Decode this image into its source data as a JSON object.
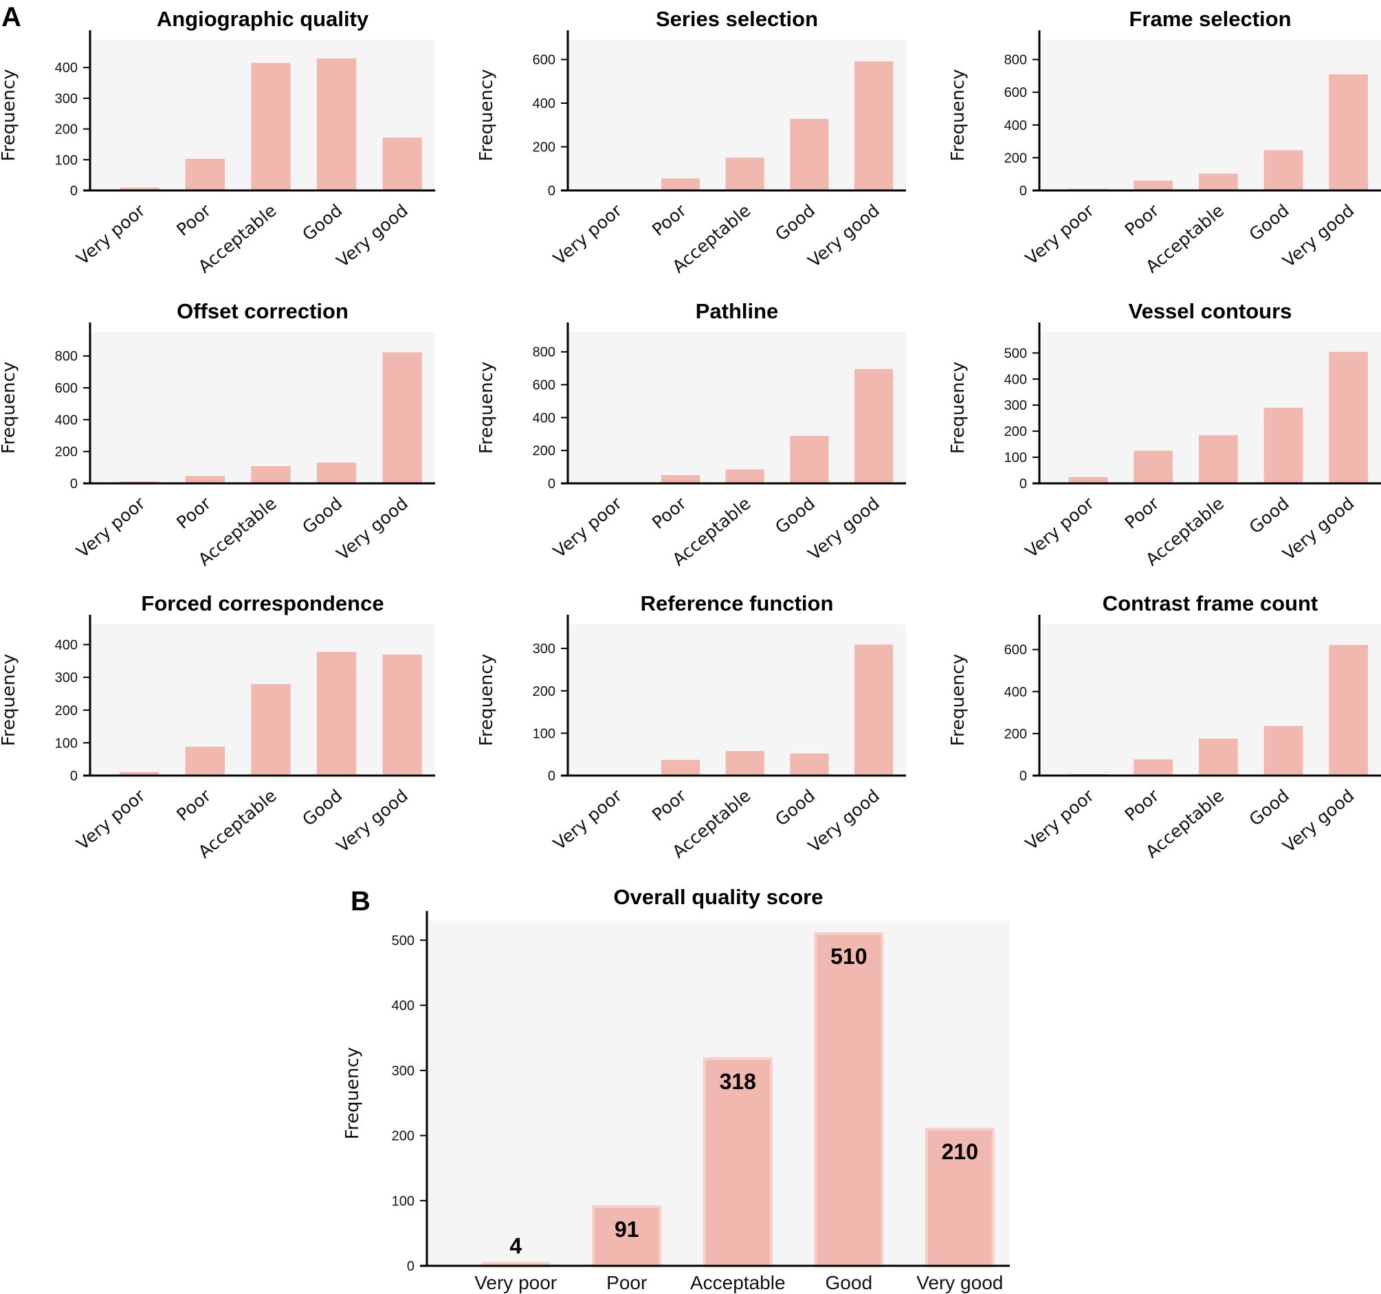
{
  "figure": {
    "panel_a_label": "A",
    "panel_b_label": "B"
  },
  "colors": {
    "bar": "#f0b8ae",
    "bar_edge": "#f7cfc8",
    "plot_bg": "#f5f5f5",
    "axis": "#000000"
  },
  "chart_data": [
    {
      "type": "bar",
      "panel": "A",
      "title": "Angiographic quality",
      "xlabel": "",
      "ylabel": "Frequency",
      "categories": [
        "Very poor",
        "Poor",
        "Acceptable",
        "Good",
        "Very good"
      ],
      "values": [
        9,
        103,
        415,
        430,
        172
      ],
      "yticks": [
        0,
        100,
        200,
        300,
        400
      ],
      "ylim": [
        0,
        490
      ],
      "grid": false
    },
    {
      "type": "bar",
      "panel": "A",
      "title": "Series selection",
      "xlabel": "",
      "ylabel": "Frequency",
      "categories": [
        "Very poor",
        "Poor",
        "Acceptable",
        "Good",
        "Very good"
      ],
      "values": [
        4,
        55,
        150,
        328,
        591
      ],
      "yticks": [
        0,
        200,
        400,
        600
      ],
      "ylim": [
        0,
        690
      ],
      "grid": false
    },
    {
      "type": "bar",
      "panel": "A",
      "title": "Frame selection",
      "xlabel": "",
      "ylabel": "Frequency",
      "categories": [
        "Very poor",
        "Poor",
        "Acceptable",
        "Good",
        "Very good"
      ],
      "values": [
        10,
        60,
        102,
        246,
        710
      ],
      "yticks": [
        0,
        200,
        400,
        600,
        800
      ],
      "ylim": [
        0,
        920
      ],
      "grid": false
    },
    {
      "type": "bar",
      "panel": "A",
      "title": "Offset correction",
      "xlabel": "",
      "ylabel": "Frequency",
      "categories": [
        "Very poor",
        "Poor",
        "Acceptable",
        "Good",
        "Very good"
      ],
      "values": [
        12,
        46,
        108,
        130,
        823
      ],
      "yticks": [
        0,
        200,
        400,
        600,
        800
      ],
      "ylim": [
        0,
        950
      ],
      "grid": false
    },
    {
      "type": "bar",
      "panel": "A",
      "title": "Pathline",
      "xlabel": "",
      "ylabel": "Frequency",
      "categories": [
        "Very poor",
        "Poor",
        "Acceptable",
        "Good",
        "Very good"
      ],
      "values": [
        0,
        50,
        85,
        289,
        695
      ],
      "yticks": [
        0,
        200,
        400,
        600,
        800
      ],
      "ylim": [
        0,
        920
      ],
      "grid": false
    },
    {
      "type": "bar",
      "panel": "A",
      "title": "Vessel contours",
      "xlabel": "",
      "ylabel": "Frequency",
      "categories": [
        "Very poor",
        "Poor",
        "Acceptable",
        "Good",
        "Very good"
      ],
      "values": [
        24,
        125,
        185,
        290,
        504
      ],
      "yticks": [
        0,
        100,
        200,
        300,
        400,
        500
      ],
      "ylim": [
        0,
        580
      ],
      "grid": false
    },
    {
      "type": "bar",
      "panel": "A",
      "title": "Forced correspondence",
      "xlabel": "",
      "ylabel": "Frequency",
      "categories": [
        "Very poor",
        "Poor",
        "Acceptable",
        "Good",
        "Very good"
      ],
      "values": [
        11,
        88,
        279,
        378,
        370
      ],
      "yticks": [
        0,
        100,
        200,
        300,
        400
      ],
      "ylim": [
        0,
        462
      ],
      "grid": false
    },
    {
      "type": "bar",
      "panel": "A",
      "title": "Reference function",
      "xlabel": "",
      "ylabel": "Frequency",
      "categories": [
        "Very poor",
        "Poor",
        "Acceptable",
        "Good",
        "Very good"
      ],
      "values": [
        2,
        37,
        58,
        52,
        309
      ],
      "yticks": [
        0,
        100,
        200,
        300
      ],
      "ylim": [
        0,
        357
      ],
      "grid": false
    },
    {
      "type": "bar",
      "panel": "A",
      "title": "Contrast frame count",
      "xlabel": "",
      "ylabel": "Frequency",
      "categories": [
        "Very poor",
        "Poor",
        "Acceptable",
        "Good",
        "Very good"
      ],
      "values": [
        7,
        77,
        176,
        236,
        622
      ],
      "yticks": [
        0,
        200,
        400,
        600
      ],
      "ylim": [
        0,
        720
      ],
      "grid": false
    },
    {
      "type": "bar",
      "panel": "B",
      "title": "Overall quality score",
      "xlabel": "",
      "ylabel": "Frequency",
      "categories": [
        "Very poor",
        "Poor",
        "Acceptable",
        "Good",
        "Very good"
      ],
      "values": [
        4,
        91,
        318,
        510,
        210
      ],
      "data_labels": [
        "4",
        "91",
        "318",
        "510",
        "210"
      ],
      "yticks": [
        0,
        100,
        200,
        300,
        400,
        500
      ],
      "ylim": [
        0,
        530
      ],
      "grid": false
    }
  ]
}
